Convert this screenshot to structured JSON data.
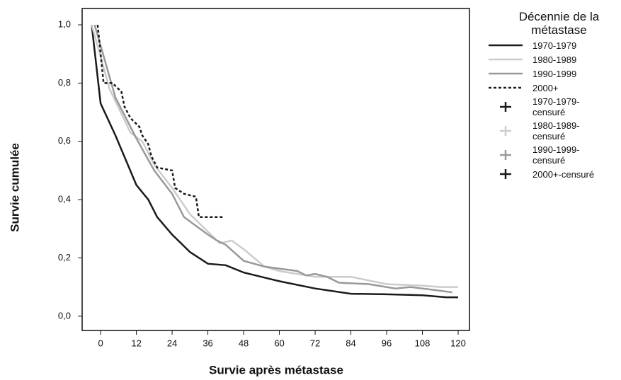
{
  "chart_data": {
    "type": "line",
    "x_label": "Survie après métastase",
    "y_label": "Survie cumulée",
    "legend_title": "Décennie de la métastase",
    "xlim": [
      -6.2,
      123.8
    ],
    "ylim": [
      -0.049,
      1.056
    ],
    "xticks": [
      0,
      12,
      24,
      36,
      48,
      60,
      72,
      84,
      96,
      108,
      120
    ],
    "yticks": [
      {
        "value": 0,
        "label": "0,0"
      },
      {
        "value": 0.2,
        "label": "0,2"
      },
      {
        "value": 0.4,
        "label": "0,4"
      },
      {
        "value": 0.6,
        "label": "0,6"
      },
      {
        "value": 0.8,
        "label": "0,8"
      },
      {
        "value": 1,
        "label": "1,0"
      }
    ],
    "series": [
      {
        "name": "1970-1979",
        "color": "#1a1a1a",
        "dashed": false,
        "x": [
          -3,
          0,
          5,
          12,
          16,
          19,
          24,
          30,
          36,
          42,
          48,
          60,
          72,
          84,
          96,
          108,
          116,
          120
        ],
        "values": [
          1.0,
          0.73,
          0.62,
          0.45,
          0.4,
          0.34,
          0.28,
          0.22,
          0.18,
          0.175,
          0.15,
          0.12,
          0.095,
          0.077,
          0.075,
          0.072,
          0.065,
          0.065
        ]
      },
      {
        "name": "1980-1989",
        "color": "#cccccc",
        "dashed": false,
        "x": [
          -3,
          3,
          10,
          14,
          18,
          24,
          30,
          36,
          40,
          44,
          48,
          55,
          60,
          72,
          84,
          96,
          108,
          114,
          120
        ],
        "values": [
          1.0,
          0.78,
          0.63,
          0.6,
          0.52,
          0.44,
          0.35,
          0.29,
          0.25,
          0.26,
          0.23,
          0.17,
          0.155,
          0.135,
          0.135,
          0.11,
          0.105,
          0.1,
          0.1
        ]
      },
      {
        "name": "1990-1999",
        "color": "#999999",
        "dashed": false,
        "x": [
          -2,
          5,
          12,
          18,
          24,
          28,
          36,
          39,
          42,
          48,
          55,
          66,
          69,
          72,
          76,
          80,
          90,
          99,
          104,
          112,
          118
        ],
        "values": [
          1.0,
          0.75,
          0.61,
          0.5,
          0.42,
          0.34,
          0.28,
          0.26,
          0.245,
          0.19,
          0.17,
          0.155,
          0.14,
          0.145,
          0.135,
          0.115,
          0.11,
          0.095,
          0.1,
          0.09,
          0.082
        ]
      },
      {
        "name": "2000+",
        "color": "#1a1a1a",
        "dashed": true,
        "x": [
          -1,
          1,
          4,
          7,
          8,
          10,
          13,
          14,
          16,
          17,
          19,
          24,
          25,
          28,
          32,
          33,
          41
        ],
        "values": [
          1.0,
          0.8,
          0.8,
          0.77,
          0.72,
          0.68,
          0.65,
          0.62,
          0.59,
          0.55,
          0.51,
          0.5,
          0.44,
          0.42,
          0.41,
          0.34,
          0.34
        ]
      }
    ],
    "censored_legend": [
      {
        "name": "1970-1979-censuré",
        "color": "#1a1a1a"
      },
      {
        "name": "1980-1989-censuré",
        "color": "#cccccc"
      },
      {
        "name": "1990-1999-censuré",
        "color": "#999999"
      },
      {
        "name": "2000+-censuré",
        "color": "#1a1a1a"
      }
    ]
  }
}
